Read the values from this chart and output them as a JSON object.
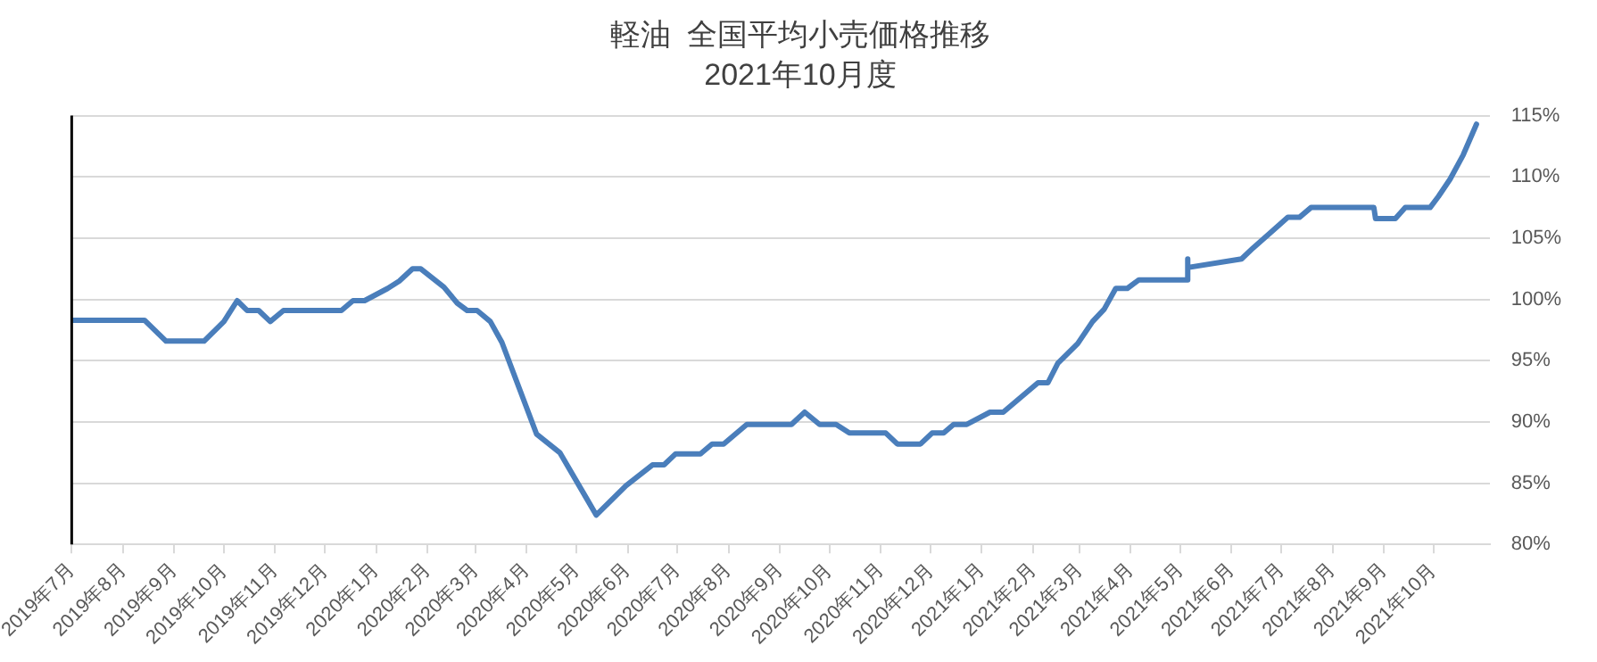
{
  "chart_data": {
    "type": "line",
    "title": "軽油  全国平均小売価格推移",
    "subtitle": "2021年10月度",
    "x": [
      "2019-07-01",
      "2019-08-14",
      "2019-08-27",
      "2019-09-19",
      "2019-10-01",
      "2019-10-09",
      "2019-10-15",
      "2019-10-22",
      "2019-10-29",
      "2019-11-06",
      "2019-12-11",
      "2019-12-18",
      "2019-12-25",
      "2020-01-08",
      "2020-01-15",
      "2020-01-23",
      "2020-01-28",
      "2020-02-11",
      "2020-02-19",
      "2020-02-25",
      "2020-03-02",
      "2020-03-10",
      "2020-03-17",
      "2020-04-07",
      "2020-04-21",
      "2020-05-07",
      "2020-05-13",
      "2020-05-31",
      "2020-06-16",
      "2020-06-23",
      "2020-06-30",
      "2020-07-15",
      "2020-07-22",
      "2020-07-29",
      "2020-08-12",
      "2020-09-08",
      "2020-09-16",
      "2020-09-25",
      "2020-10-05",
      "2020-10-13",
      "2020-11-04",
      "2020-11-11",
      "2020-11-25",
      "2020-12-02",
      "2020-12-09",
      "2020-12-15",
      "2020-12-23",
      "2021-01-06",
      "2021-01-14",
      "2021-02-04",
      "2021-02-10",
      "2021-02-16",
      "2021-02-28",
      "2021-03-09",
      "2021-03-16",
      "2021-03-23",
      "2021-03-30",
      "2021-04-06",
      "2021-05-05",
      "2021-05-05T08:00",
      "2021-05-05T16:00",
      "2021-06-07",
      "2021-06-14",
      "2021-07-05",
      "2021-07-12",
      "2021-07-19",
      "2021-08-26",
      "2021-08-27",
      "2021-09-08",
      "2021-09-14",
      "2021-09-29",
      "2021-10-04",
      "2021-10-11",
      "2021-10-19",
      "2021-10-27"
    ],
    "series": [
      {
        "color": "#4a7ebb",
        "values": [
          98.3,
          98.3,
          96.6,
          96.6,
          98.2,
          99.9,
          99.1,
          99.1,
          98.2,
          99.1,
          99.1,
          99.9,
          99.9,
          100.9,
          101.5,
          102.5,
          102.5,
          101.0,
          99.7,
          99.1,
          99.1,
          98.2,
          96.5,
          89.0,
          87.5,
          83.8,
          82.4,
          84.8,
          86.5,
          86.5,
          87.4,
          87.4,
          88.2,
          88.2,
          89.8,
          89.8,
          90.8,
          89.8,
          89.8,
          89.1,
          89.1,
          88.2,
          88.2,
          89.1,
          89.1,
          89.8,
          89.8,
          90.8,
          90.8,
          93.2,
          93.2,
          94.8,
          96.4,
          98.2,
          99.2,
          100.9,
          100.9,
          101.6,
          101.6,
          103.3,
          102.6,
          103.3,
          104.2,
          106.7,
          106.7,
          107.5,
          107.5,
          106.6,
          106.6,
          107.5,
          107.5,
          108.4,
          109.8,
          111.8,
          114.3
        ]
      }
    ],
    "xlim": [
      "2019-07-01",
      "2021-11-04"
    ],
    "xticks": [
      {
        "value": "2019-07",
        "label": "2019年7月"
      },
      {
        "value": "2019-08",
        "label": "2019年8月"
      },
      {
        "value": "2019-09",
        "label": "2019年9月"
      },
      {
        "value": "2019-10",
        "label": "2019年10月"
      },
      {
        "value": "2019-11",
        "label": "2019年11月"
      },
      {
        "value": "2019-12",
        "label": "2019年12月"
      },
      {
        "value": "2020-01",
        "label": "2020年1月"
      },
      {
        "value": "2020-02",
        "label": "2020年2月"
      },
      {
        "value": "2020-03",
        "label": "2020年3月"
      },
      {
        "value": "2020-04",
        "label": "2020年4月"
      },
      {
        "value": "2020-05",
        "label": "2020年5月"
      },
      {
        "value": "2020-06",
        "label": "2020年6月"
      },
      {
        "value": "2020-07",
        "label": "2020年7月"
      },
      {
        "value": "2020-08",
        "label": "2020年8月"
      },
      {
        "value": "2020-09",
        "label": "2020年9月"
      },
      {
        "value": "2020-10",
        "label": "2020年10月"
      },
      {
        "value": "2020-11",
        "label": "2020年11月"
      },
      {
        "value": "2020-12",
        "label": "2020年12月"
      },
      {
        "value": "2021-01",
        "label": "2021年1月"
      },
      {
        "value": "2021-02",
        "label": "2021年2月"
      },
      {
        "value": "2021-03",
        "label": "2021年3月"
      },
      {
        "value": "2021-04",
        "label": "2021年4月"
      },
      {
        "value": "2021-05",
        "label": "2021年5月"
      },
      {
        "value": "2021-06",
        "label": "2021年6月"
      },
      {
        "value": "2021-07",
        "label": "2021年7月"
      },
      {
        "value": "2021-08",
        "label": "2021年8月"
      },
      {
        "value": "2021-09",
        "label": "2021年9月"
      },
      {
        "value": "2021-10",
        "label": "2021年10月"
      }
    ],
    "ylim": [
      80,
      115
    ],
    "yticks": [
      {
        "value": 80,
        "label": "80%"
      },
      {
        "value": 85,
        "label": "85%"
      },
      {
        "value": 90,
        "label": "90%"
      },
      {
        "value": 95,
        "label": "95%"
      },
      {
        "value": 100,
        "label": "100%"
      },
      {
        "value": 105,
        "label": "105%"
      },
      {
        "value": 110,
        "label": "110%"
      },
      {
        "value": 115,
        "label": "115%"
      }
    ],
    "grid": "y",
    "marker": "none",
    "line_style": "solid",
    "legend": false
  }
}
